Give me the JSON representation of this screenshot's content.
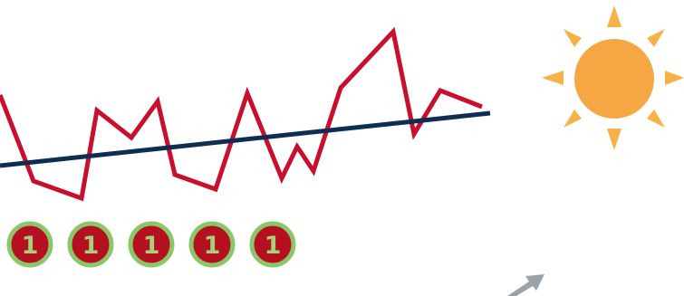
{
  "colors": {
    "zigzag_line": "#c8102e",
    "trend_line": "#0d2d52",
    "sun_disc": "#f5a743",
    "sun_rays": "#f7b247",
    "badge_fill": "#b5101f",
    "badge_ring": "#8cc66a",
    "badge_text": "#a8cf7b",
    "arrow": "#9aa3a9"
  },
  "badges": [
    {
      "label": "1"
    },
    {
      "label": "1"
    },
    {
      "label": "1"
    },
    {
      "label": "1"
    },
    {
      "label": "1"
    }
  ],
  "icons": {
    "sun": "sun-icon",
    "arrow": "up-right-arrow-icon"
  }
}
